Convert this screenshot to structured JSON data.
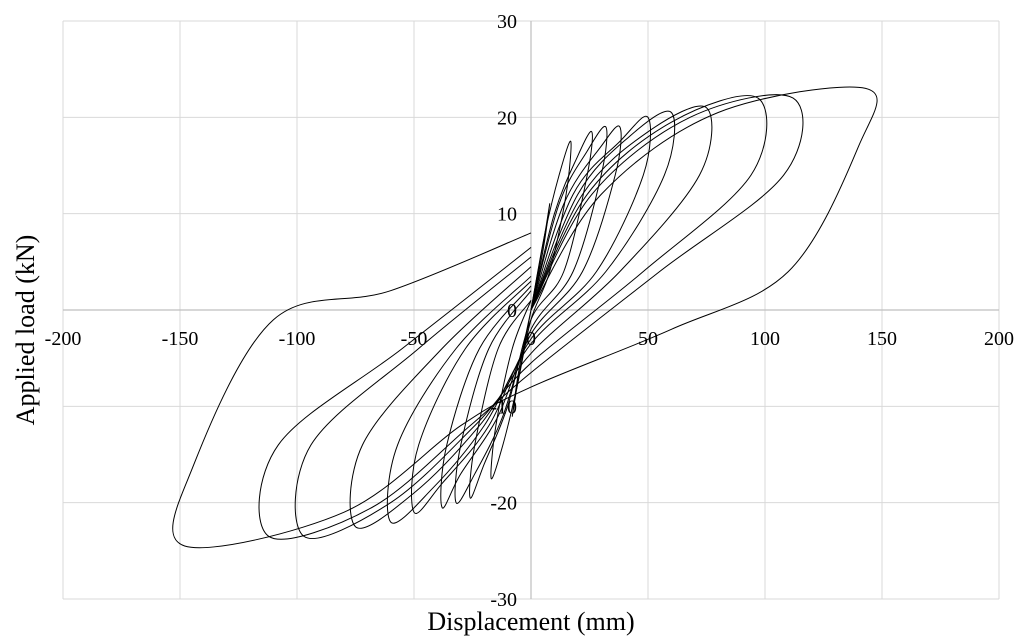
{
  "chart_data": {
    "type": "line",
    "title": "",
    "xlabel": "Displacement (mm)",
    "ylabel": "Applied load (kN)",
    "xlim": [
      -200,
      200
    ],
    "ylim": [
      -30,
      30
    ],
    "x_ticks": [
      -200,
      -150,
      -100,
      -50,
      0,
      50,
      100,
      150,
      200
    ],
    "y_ticks": [
      -30,
      -20,
      -10,
      0,
      10,
      20,
      30
    ],
    "x_tick_labels": [
      "-200",
      "-150",
      "-100",
      "-50",
      "0",
      "50",
      "100",
      "150",
      "200"
    ],
    "y_tick_labels": [
      "-30",
      "-20",
      "-10",
      "0",
      "10",
      "20",
      "30"
    ],
    "grid": true,
    "legend": "none",
    "line_color": "#000000",
    "series": [
      {
        "x": [
          0,
          3,
          6,
          8,
          5,
          0,
          -3,
          -6,
          -8,
          -5,
          0
        ],
        "y": [
          0,
          4,
          8,
          11,
          6,
          0,
          -4,
          -8,
          -11,
          -6,
          0
        ]
      },
      {
        "x": [
          0,
          6,
          12,
          17,
          15,
          8,
          0,
          -6,
          -12,
          -17,
          -15,
          -8,
          0
        ],
        "y": [
          0,
          8,
          14,
          17.5,
          12,
          4,
          -1,
          -8,
          -14,
          -17.5,
          -12,
          -4,
          1
        ]
      },
      {
        "x": [
          0,
          10,
          20,
          26,
          24,
          14,
          0,
          -10,
          -20,
          -26,
          -24,
          -14,
          0
        ],
        "y": [
          0,
          10,
          16,
          18.5,
          14,
          4,
          -1,
          -10,
          -16,
          -19.5,
          -14,
          -4,
          1
        ]
      },
      {
        "x": [
          0,
          12,
          24,
          32,
          30,
          18,
          0,
          -12,
          -24,
          -32,
          -30,
          -18,
          0
        ],
        "y": [
          0,
          11,
          16.5,
          19,
          14,
          4,
          -2,
          -11,
          -17,
          -20,
          -14,
          -4,
          2
        ]
      },
      {
        "x": [
          0,
          14,
          30,
          38,
          36,
          22,
          0,
          -14,
          -30,
          -38,
          -36,
          -22,
          0
        ],
        "y": [
          0,
          11,
          17,
          19,
          14,
          4,
          -2.5,
          -11,
          -17,
          -20.5,
          -14,
          -4,
          2.5
        ]
      },
      {
        "x": [
          0,
          18,
          38,
          50,
          48,
          28,
          0,
          -18,
          -38,
          -50,
          -48,
          -28,
          0
        ],
        "y": [
          0,
          12,
          17.5,
          20,
          14,
          4,
          -3,
          -12,
          -18,
          -21,
          -14,
          -4,
          3
        ]
      },
      {
        "x": [
          0,
          20,
          42,
          60,
          57,
          32,
          0,
          -20,
          -42,
          -60,
          -57,
          -32,
          0
        ],
        "y": [
          0,
          12,
          18,
          20.5,
          14,
          4,
          -3.5,
          -12,
          -18.5,
          -22,
          -14,
          -4,
          3.5
        ]
      },
      {
        "x": [
          0,
          22,
          50,
          75,
          72,
          38,
          0,
          -22,
          -50,
          -75,
          -72,
          -38,
          0
        ],
        "y": [
          0,
          12,
          18.5,
          21,
          14,
          4,
          -4.5,
          -12,
          -19,
          -22.5,
          -14,
          -4,
          4.5
        ]
      },
      {
        "x": [
          0,
          24,
          60,
          97,
          94,
          48,
          0,
          -24,
          -60,
          -97,
          -94,
          -48,
          0
        ],
        "y": [
          0,
          12,
          19.5,
          22,
          14,
          4,
          -5.5,
          -12,
          -20,
          -23.5,
          -14,
          -4,
          5.5
        ]
      },
      {
        "x": [
          0,
          26,
          68,
          112,
          108,
          55,
          0,
          -26,
          -68,
          -112,
          -108,
          -55,
          0
        ],
        "y": [
          0,
          12,
          20,
          22,
          14,
          4,
          -6.5,
          -12,
          -20.5,
          -23.5,
          -14,
          -4,
          6.5
        ]
      },
      {
        "x": [
          0,
          30,
          80,
          143,
          140,
          110,
          60,
          0,
          -30,
          -80,
          -148,
          -144,
          -110,
          -60,
          0
        ],
        "y": [
          0,
          12,
          20.5,
          23,
          17,
          4,
          -2,
          -8,
          -12,
          -21,
          -24.5,
          -16,
          -1,
          2,
          8
        ]
      }
    ]
  }
}
